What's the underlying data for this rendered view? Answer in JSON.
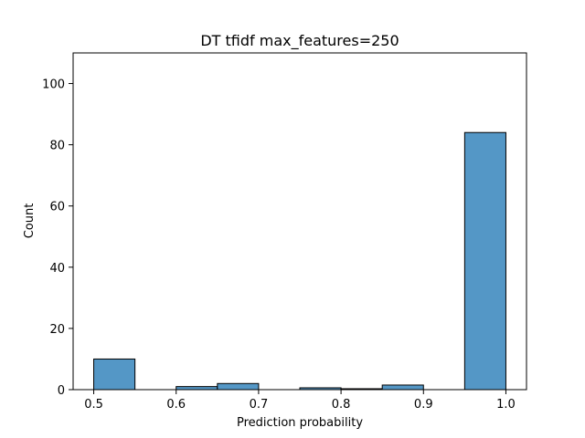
{
  "chart_data": {
    "type": "bar",
    "title": "DT tfidf max_features=250",
    "xlabel": "Prediction probability",
    "ylabel": "Count",
    "xlim": [
      0.475,
      1.025
    ],
    "ylim": [
      0,
      110
    ],
    "bin_width": 0.05,
    "bins": [
      {
        "x_start": 0.5,
        "x_end": 0.55,
        "count": 10
      },
      {
        "x_start": 0.55,
        "x_end": 0.6,
        "count": 0
      },
      {
        "x_start": 0.6,
        "x_end": 0.65,
        "count": 1
      },
      {
        "x_start": 0.65,
        "x_end": 0.7,
        "count": 2
      },
      {
        "x_start": 0.7,
        "x_end": 0.75,
        "count": 0
      },
      {
        "x_start": 0.75,
        "x_end": 0.8,
        "count": 0.6
      },
      {
        "x_start": 0.8,
        "x_end": 0.85,
        "count": 0.3
      },
      {
        "x_start": 0.85,
        "x_end": 0.9,
        "count": 1.5
      },
      {
        "x_start": 0.9,
        "x_end": 0.95,
        "count": 0
      },
      {
        "x_start": 0.95,
        "x_end": 1.0,
        "count": 84
      }
    ],
    "x_ticks": [
      0.5,
      0.6,
      0.7,
      0.8,
      0.9,
      1.0
    ],
    "x_tick_labels": [
      "0.5",
      "0.6",
      "0.7",
      "0.8",
      "0.9",
      "1.0"
    ],
    "y_ticks": [
      0,
      20,
      40,
      60,
      80,
      100
    ],
    "y_tick_labels": [
      "0",
      "20",
      "40",
      "60",
      "80",
      "100"
    ],
    "grid": false,
    "bar_color": "#5497c6",
    "bar_edge_color": "#000000"
  }
}
